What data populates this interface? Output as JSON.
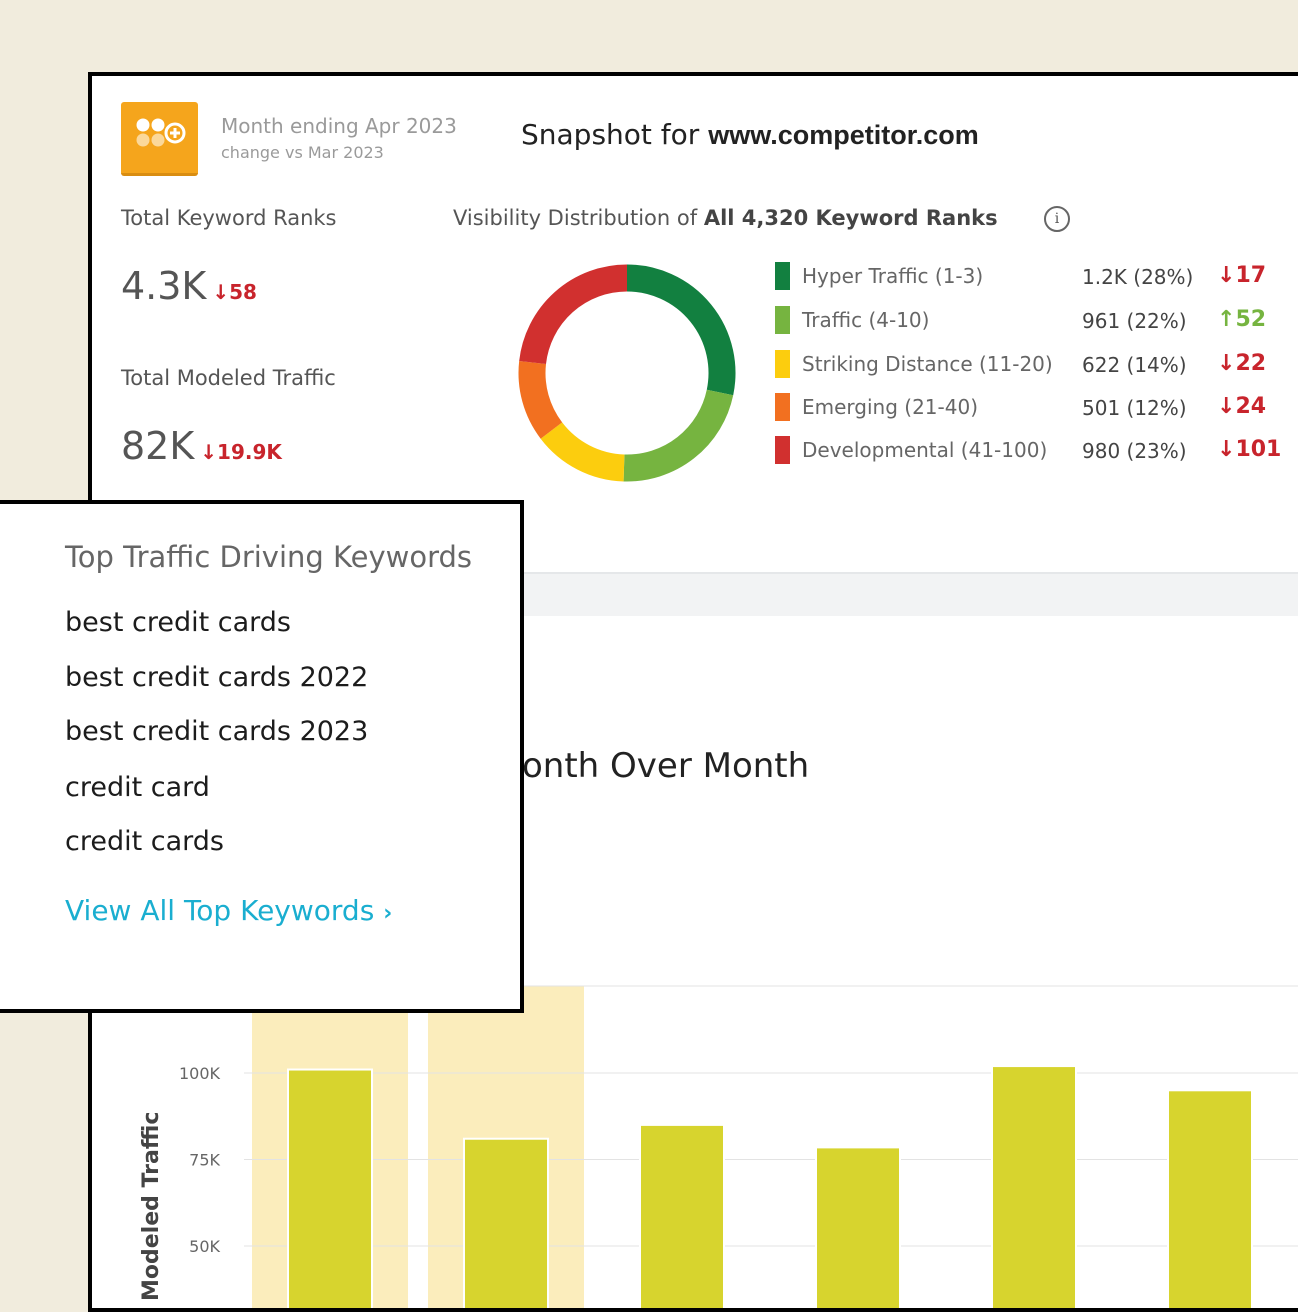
{
  "header": {
    "period_title": "Month ending Apr 2023",
    "period_sub": "change vs Mar 2023",
    "snapshot_prefix": "Snapshot for",
    "snapshot_domain": "www.competitor.com"
  },
  "metrics": {
    "ranks_label": "Total Keyword Ranks",
    "ranks_value": "4.3K",
    "ranks_delta": "58",
    "traffic_label": "Total Modeled Traffic",
    "traffic_value": "82K",
    "traffic_delta": "19.9K"
  },
  "visibility": {
    "title_prefix": "Visibility Distribution of",
    "title_bold": "All 4,320 Keyword Ranks",
    "info_glyph": "i",
    "items": [
      {
        "label": "Hyper Traffic (1-3)",
        "count": "1.2K (28%)",
        "delta": "17",
        "direction": "down",
        "color": "#128040",
        "share": 28
      },
      {
        "label": "Traffic (4-10)",
        "count": "961 (22%)",
        "delta": "52",
        "direction": "up",
        "color": "#76b440",
        "share": 22
      },
      {
        "label": "Striking Distance (11-20)",
        "count": "622 (14%)",
        "delta": "22",
        "direction": "down",
        "color": "#fccd0e",
        "share": 14
      },
      {
        "label": "Emerging (21-40)",
        "count": "501 (12%)",
        "delta": "24",
        "direction": "down",
        "color": "#f27020",
        "share": 12
      },
      {
        "label": "Developmental (41-100)",
        "count": "980 (23%)",
        "delta": "101",
        "direction": "down",
        "color": "#d1302f",
        "share": 23
      }
    ],
    "up_color": "#76b440",
    "down_color": "#c8242c"
  },
  "keywords": {
    "title": "Top Traffic Driving Keywords",
    "items": [
      "best credit cards",
      "best credit cards 2022",
      "best credit cards 2023",
      "credit card",
      "credit cards"
    ],
    "link_label": "View All Top Keywords",
    "link_color": "#1aaed0"
  },
  "chart_data": {
    "type": "bar",
    "title": "onth Over Month",
    "ylabel": "Modeled Traffic",
    "yticks": [
      "50K",
      "75K",
      "100K"
    ],
    "tick_values": [
      50000,
      75000,
      100000
    ],
    "values": [
      101000,
      81000,
      85000,
      78500,
      102000,
      95000
    ],
    "highlighted": [
      0,
      1
    ],
    "bar_color": "#d7d42e",
    "highlight_color": "#fbedbc"
  }
}
